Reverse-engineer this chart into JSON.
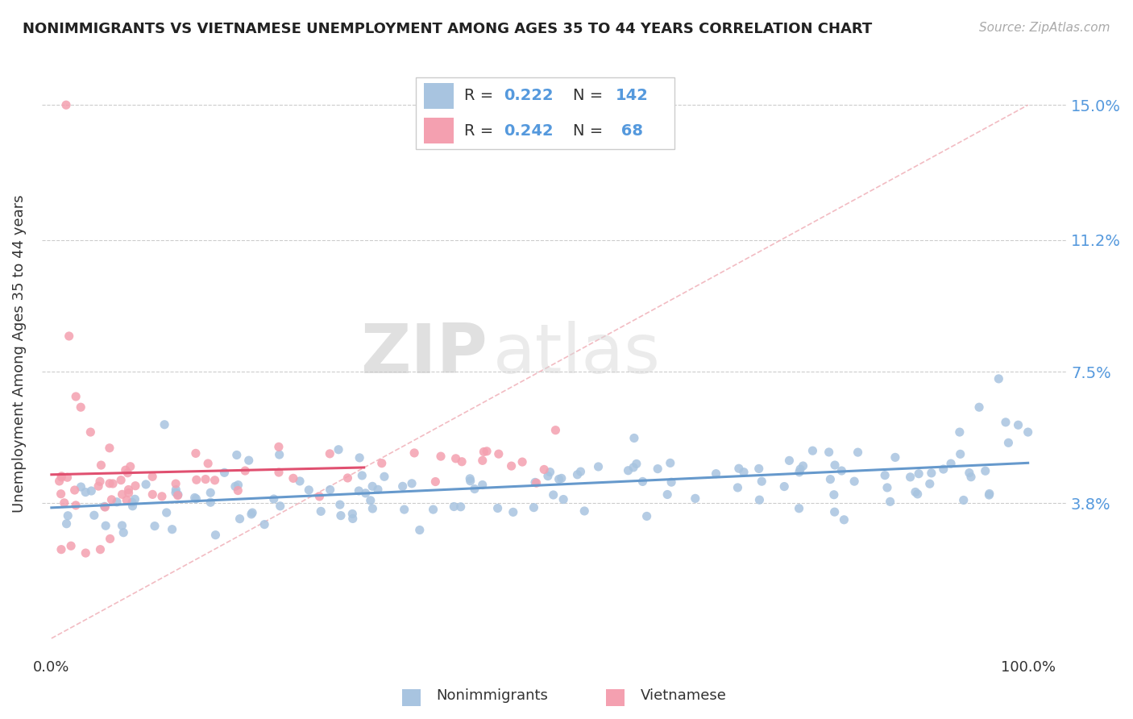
{
  "title": "NONIMMIGRANTS VS VIETNAMESE UNEMPLOYMENT AMONG AGES 35 TO 44 YEARS CORRELATION CHART",
  "source": "Source: ZipAtlas.com",
  "ylabel": "Unemployment Among Ages 35 to 44 years",
  "blue_color": "#a8c4e0",
  "pink_color": "#f4a0b0",
  "trend_blue": "#6699cc",
  "trend_pink": "#e05070",
  "diag_color": "#f0b0b8",
  "watermark_zip": "ZIP",
  "watermark_atlas": "atlas",
  "legend_R1": "R = 0.222",
  "legend_N1": "N = 142",
  "legend_R2": "R = 0.242",
  "legend_N2": "N =  68",
  "ytick_vals": [
    3.8,
    7.5,
    11.2,
    15.0
  ],
  "ytick_labels": [
    "3.8%",
    "7.5%",
    "11.2%",
    "15.0%"
  ],
  "xtick_vals": [
    0,
    100
  ],
  "xtick_labels": [
    "0.0%",
    "100.0%"
  ],
  "ylim": [
    -0.5,
    16.5
  ],
  "xlim": [
    -1,
    104
  ]
}
